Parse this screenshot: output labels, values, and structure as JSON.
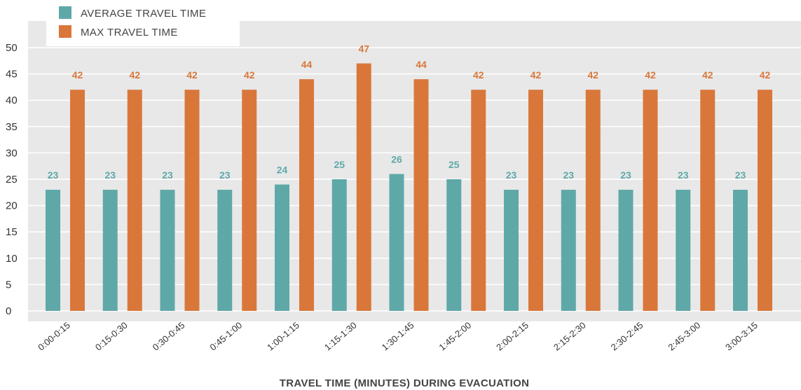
{
  "chart_data": {
    "type": "bar",
    "xlabel": "TRAVEL TIME (MINUTES) DURING EVACUATION",
    "ylabel": "",
    "ylim": [
      0,
      50
    ],
    "yticks": [
      0,
      5,
      10,
      15,
      20,
      25,
      30,
      35,
      40,
      45,
      50
    ],
    "grid": true,
    "legend_position": "top-left",
    "background": "#e8e8e8",
    "categories": [
      "0:00-0:15",
      "0:15-0:30",
      "0:30-0:45",
      "0:45-1:00",
      "1:00-1:15",
      "1:15-1:30",
      "1:30-1:45",
      "1:45-2:00",
      "2:00-2:15",
      "2:15-2:30",
      "2:30-2:45",
      "2:45-3:00",
      "3:00-3:15"
    ],
    "series": [
      {
        "name": "AVERAGE TRAVEL TIME",
        "color": "#5fa8a8",
        "values": [
          23,
          23,
          23,
          23,
          24,
          25,
          26,
          25,
          23,
          23,
          23,
          23,
          23
        ]
      },
      {
        "name": "MAX TRAVEL TIME",
        "color": "#d9773a",
        "values": [
          42,
          42,
          42,
          42,
          44,
          47,
          44,
          42,
          42,
          42,
          42,
          42,
          42
        ]
      }
    ]
  }
}
